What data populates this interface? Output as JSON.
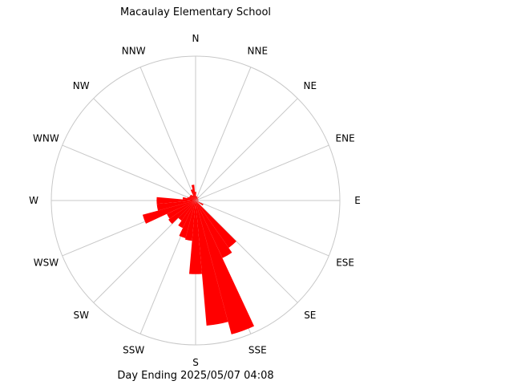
{
  "chart_data": {
    "type": "wind-rose",
    "title": "Macaulay Elementary School",
    "footer": "Day Ending 2025/05/07 04:08",
    "directions": [
      "N",
      "NNE",
      "NE",
      "ENE",
      "E",
      "ESE",
      "SE",
      "SSE",
      "S",
      "SSW",
      "SW",
      "WSW",
      "W",
      "WNW",
      "NW",
      "NNW"
    ],
    "petals": [
      {
        "dir": 0,
        "value": 0.06
      },
      {
        "dir": 10,
        "value": 0.03
      },
      {
        "dir": 20,
        "value": 0.03
      },
      {
        "dir": 30,
        "value": 0.02
      },
      {
        "dir": 40,
        "value": 0.03
      },
      {
        "dir": 60,
        "value": 0.02
      },
      {
        "dir": 80,
        "value": 0.02
      },
      {
        "dir": 100,
        "value": 0.02
      },
      {
        "dir": 120,
        "value": 0.06
      },
      {
        "dir": 140,
        "value": 0.4
      },
      {
        "dir": 150,
        "value": 0.44
      },
      {
        "dir": 160,
        "value": 0.96
      },
      {
        "dir": 170,
        "value": 0.87
      },
      {
        "dir": 180,
        "value": 0.51
      },
      {
        "dir": 190,
        "value": 0.28
      },
      {
        "dir": 200,
        "value": 0.27
      },
      {
        "dir": 210,
        "value": 0.21
      },
      {
        "dir": 220,
        "value": 0.17
      },
      {
        "dir": 230,
        "value": 0.23
      },
      {
        "dir": 240,
        "value": 0.22
      },
      {
        "dir": 250,
        "value": 0.38
      },
      {
        "dir": 260,
        "value": 0.27
      },
      {
        "dir": 270,
        "value": 0.27
      },
      {
        "dir": 280,
        "value": 0.09
      },
      {
        "dir": 290,
        "value": 0.06
      },
      {
        "dir": 300,
        "value": 0.05
      },
      {
        "dir": 310,
        "value": 0.05
      },
      {
        "dir": 320,
        "value": 0.05
      },
      {
        "dir": 330,
        "value": 0.04
      },
      {
        "dir": 340,
        "value": 0.08
      },
      {
        "dir": 350,
        "value": 0.11
      }
    ],
    "petal_width_deg": 10,
    "max_value": 1.0,
    "grid": true,
    "colors": {
      "petal": "#ff0000",
      "grid": "#c8c8c8",
      "text": "#000000",
      "background": "#ffffff"
    }
  }
}
